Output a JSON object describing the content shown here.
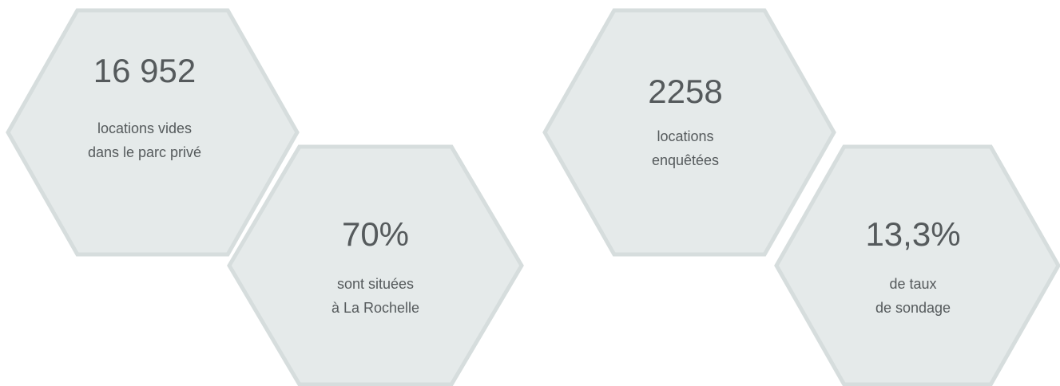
{
  "hexagons": [
    {
      "value": "16 952",
      "lines": [
        "locations vides",
        "dans le parc privé"
      ]
    },
    {
      "value": "70%",
      "lines": [
        "sont situées",
        "à La Rochelle"
      ]
    },
    {
      "value": "2258",
      "lines": [
        "locations",
        "enquêtées"
      ]
    },
    {
      "value": "13,3%",
      "lines": [
        "de taux",
        "de sondage"
      ]
    }
  ]
}
